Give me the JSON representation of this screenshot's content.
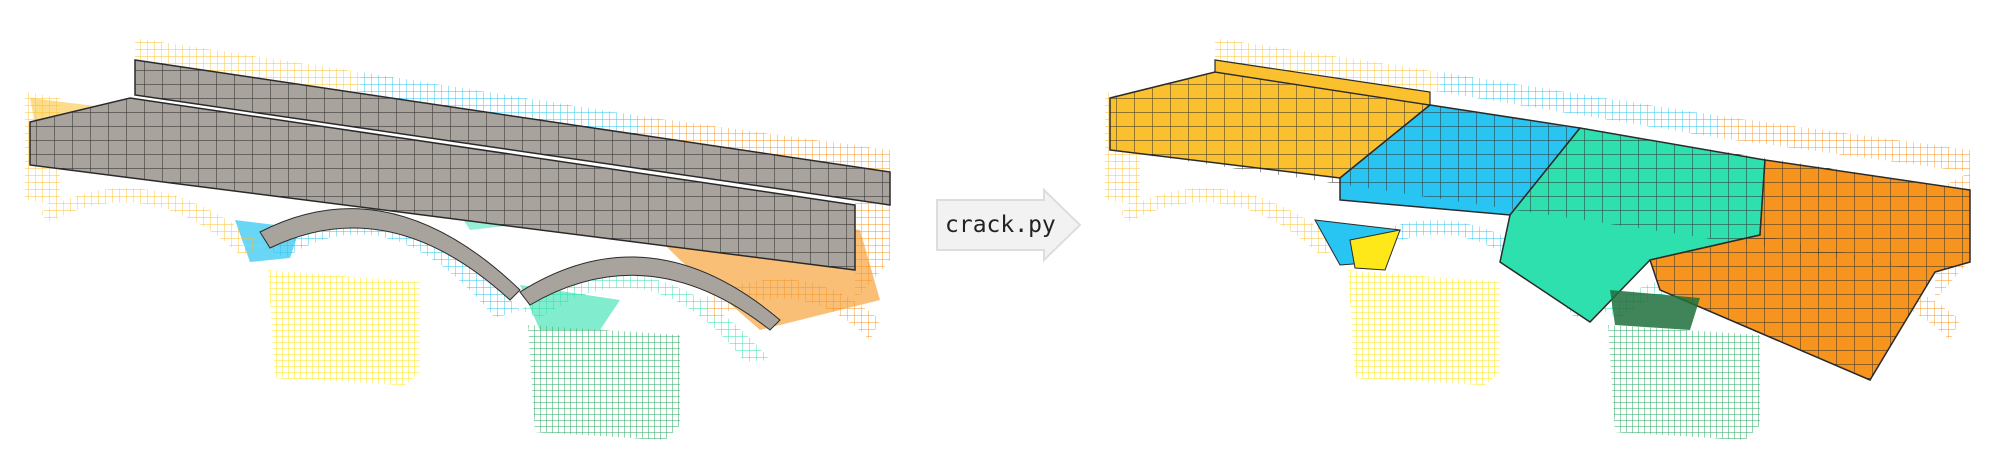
{
  "script_label": "crack.py",
  "panels": {
    "before": {
      "state": "uncracked",
      "deck_fill": "gray"
    },
    "after": {
      "state": "cracked",
      "deck_fill": "colored-by-block"
    }
  },
  "colors": {
    "orange": "#f7941d",
    "amber": "#fbc02d",
    "cyan": "#29c5f2",
    "teal": "#2ee0ad",
    "yellow": "#ffe81a",
    "green": "#27a85f",
    "deck_gray": "#a8a39c",
    "mesh_line": "#2a2a2a",
    "arrow_fill": "#f2f2f2",
    "arrow_stroke": "#dddddd"
  },
  "icons": {
    "arrow": "right-arrow-icon"
  }
}
